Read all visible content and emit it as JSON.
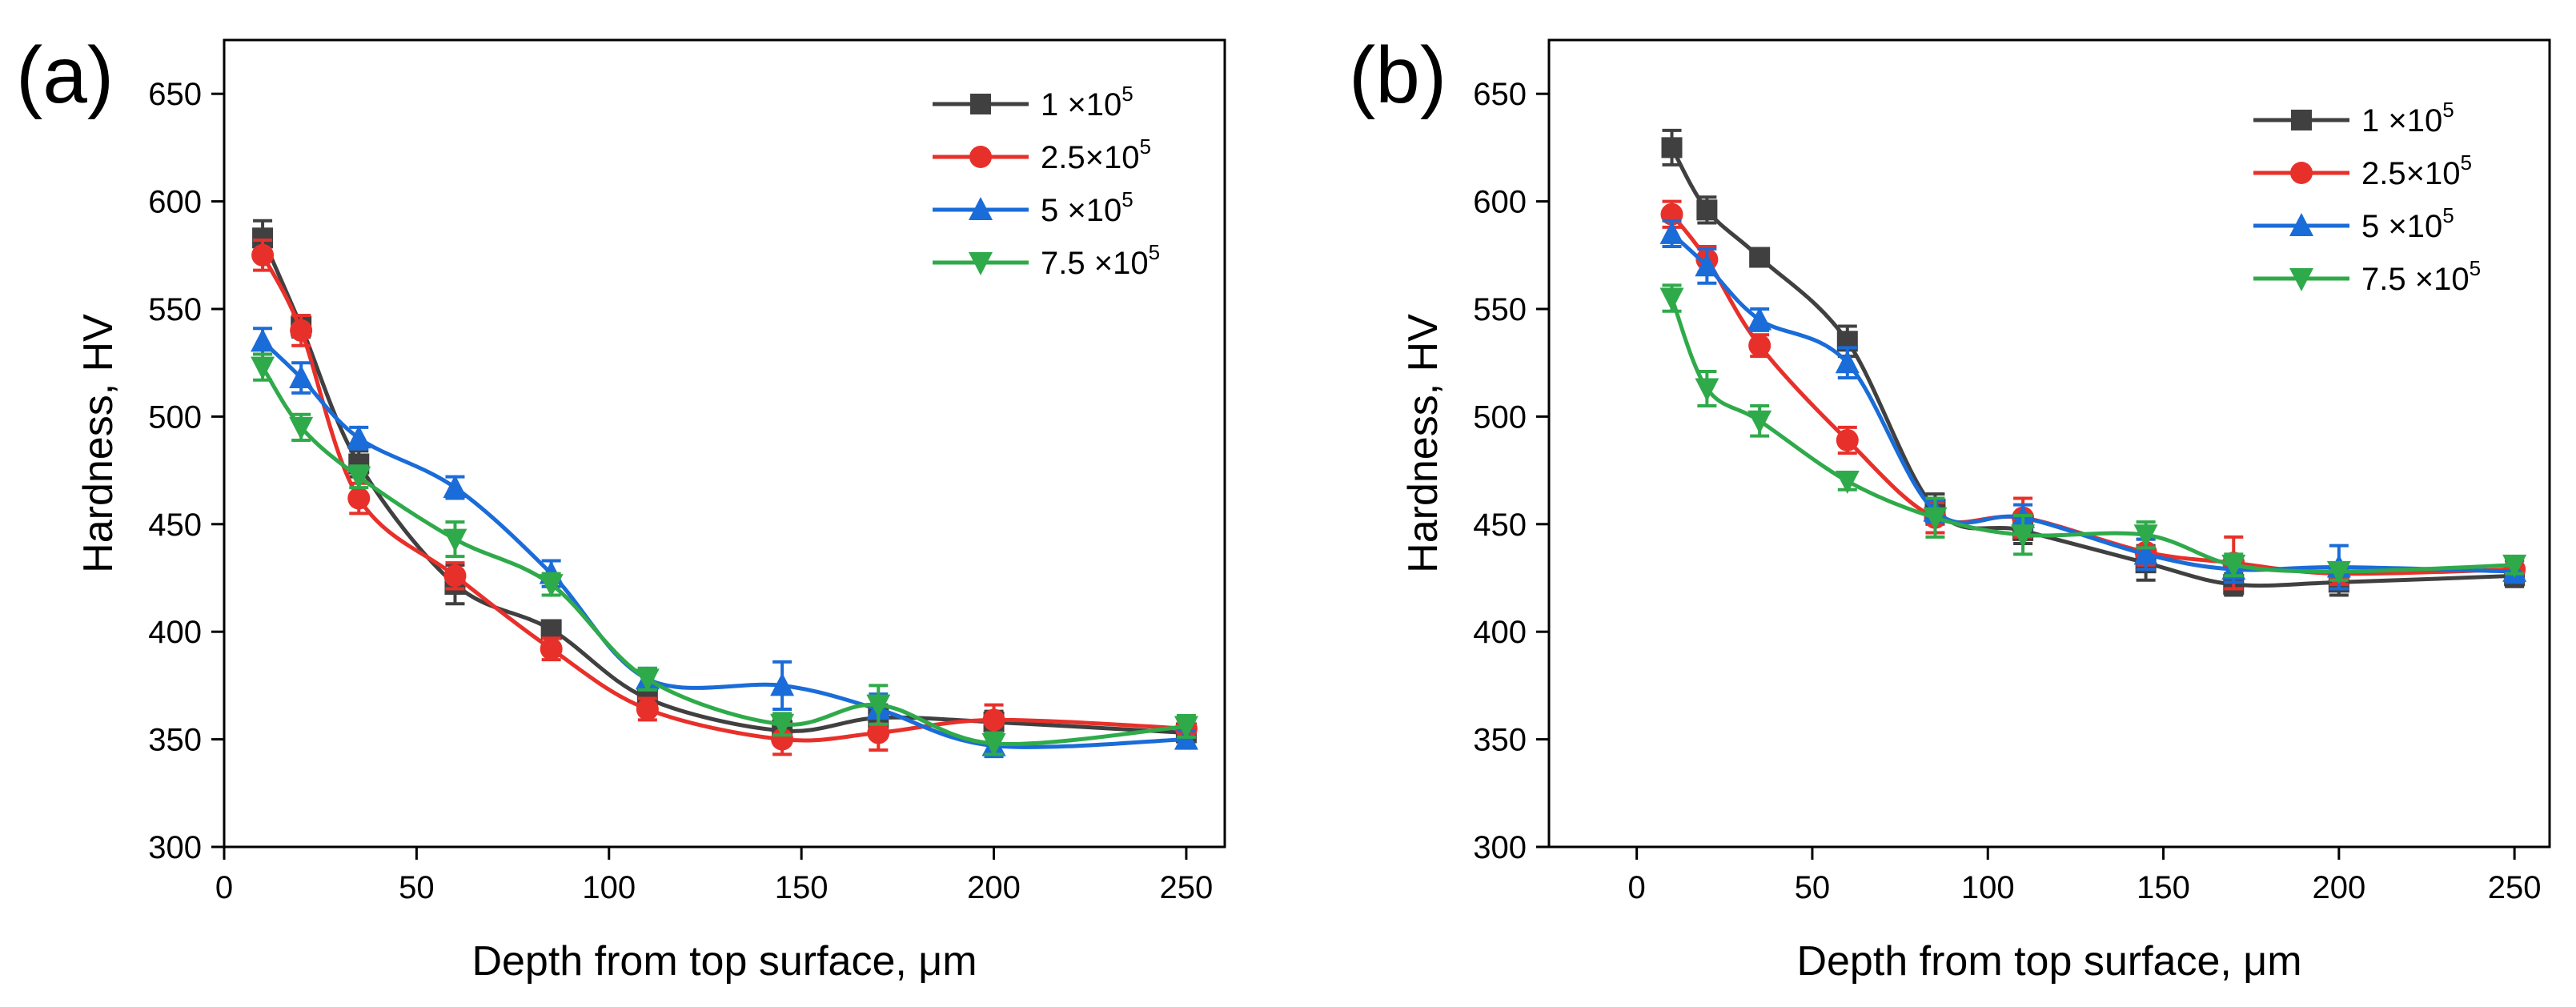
{
  "chart_data": [
    {
      "type": "line",
      "panel_label": "(a)",
      "xlabel": "Depth from top surface, μm",
      "ylabel": "Hardness, HV",
      "xlim": [
        0,
        260
      ],
      "ylim": [
        300,
        675
      ],
      "x_ticks": [
        0,
        50,
        100,
        150,
        200,
        250
      ],
      "y_ticks": [
        300,
        350,
        400,
        450,
        500,
        550,
        600,
        650
      ],
      "legend_position": "top-right",
      "x": [
        10,
        20,
        35,
        60,
        85,
        110,
        145,
        170,
        200,
        250
      ],
      "series": [
        {
          "name": "1 ×10",
          "sup": "5",
          "color": "#404040",
          "marker": "square",
          "values": [
            583,
            542,
            478,
            422,
            401,
            369,
            354,
            360,
            358,
            353
          ],
          "errors": [
            8,
            5,
            6,
            9,
            4,
            4,
            5,
            6,
            5,
            4
          ]
        },
        {
          "name": "2.5×10",
          "sup": "5",
          "color": "#e8302a",
          "marker": "circle",
          "values": [
            575,
            540,
            462,
            426,
            392,
            364,
            350,
            353,
            359,
            355
          ],
          "errors": [
            7,
            7,
            7,
            6,
            5,
            5,
            7,
            8,
            7,
            4
          ]
        },
        {
          "name": "5 ×10",
          "sup": "5",
          "color": "#1a6cd8",
          "marker": "triangle-up",
          "values": [
            535,
            518,
            490,
            467,
            427,
            378,
            375,
            364,
            347,
            350
          ],
          "errors": [
            6,
            7,
            5,
            5,
            6,
            5,
            11,
            7,
            5,
            4
          ]
        },
        {
          "name": "7.5 ×10",
          "sup": "5",
          "color": "#2faa4a",
          "marker": "triangle-down",
          "values": [
            523,
            495,
            472,
            443,
            422,
            378,
            357,
            366,
            348,
            356
          ],
          "errors": [
            6,
            6,
            5,
            8,
            5,
            5,
            5,
            9,
            5,
            5
          ]
        }
      ]
    },
    {
      "type": "line",
      "panel_label": "(b)",
      "xlabel": "Depth from top surface, μm",
      "ylabel": "Hardness, HV",
      "xlim": [
        -25,
        260
      ],
      "ylim": [
        300,
        675
      ],
      "x_ticks": [
        0,
        50,
        100,
        150,
        200,
        250
      ],
      "y_ticks": [
        300,
        350,
        400,
        450,
        500,
        550,
        600,
        650
      ],
      "legend_position": "top-right",
      "x": [
        10,
        20,
        35,
        60,
        85,
        110,
        145,
        170,
        200,
        250
      ],
      "series": [
        {
          "name": "1 ×10",
          "sup": "5",
          "color": "#404040",
          "marker": "square",
          "values": [
            625,
            596,
            574,
            535,
            457,
            447,
            432,
            422,
            423,
            426
          ],
          "errors": [
            8,
            6,
            4,
            7,
            7,
            6,
            8,
            5,
            6,
            5
          ]
        },
        {
          "name": "2.5×10",
          "sup": "5",
          "color": "#e8302a",
          "marker": "circle",
          "values": [
            594,
            573,
            533,
            489,
            453,
            453,
            437,
            432,
            427,
            429
          ],
          "errors": [
            6,
            6,
            5,
            6,
            7,
            9,
            6,
            12,
            5,
            4
          ]
        },
        {
          "name": "5 ×10",
          "sup": "5",
          "color": "#1a6cd8",
          "marker": "triangle-up",
          "values": [
            585,
            570,
            545,
            525,
            456,
            453,
            436,
            429,
            430,
            428
          ],
          "errors": [
            6,
            8,
            5,
            7,
            5,
            6,
            7,
            6,
            10,
            5
          ]
        },
        {
          "name": "7.5 ×10",
          "sup": "5",
          "color": "#2faa4a",
          "marker": "triangle-down",
          "values": [
            555,
            513,
            498,
            470,
            453,
            445,
            445,
            431,
            428,
            431
          ],
          "errors": [
            6,
            8,
            7,
            4,
            9,
            9,
            6,
            5,
            4,
            4
          ]
        }
      ]
    }
  ]
}
